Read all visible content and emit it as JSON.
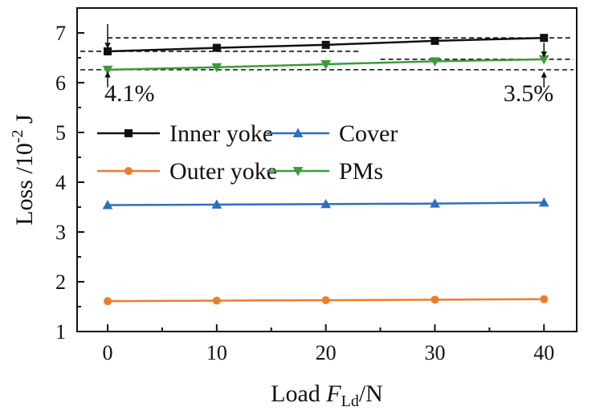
{
  "chart_data": {
    "type": "line",
    "xlabel": "Load",
    "xlabel_var": "F",
    "xlabel_sub": "Ld",
    "xlabel_unit": "/N",
    "ylabel": "Loss /10",
    "ylabel_exp": "-2",
    "ylabel_unit": " J",
    "x": [
      0,
      10,
      20,
      30,
      40
    ],
    "xticks": [
      "0",
      "10",
      "20",
      "30",
      "40"
    ],
    "yticks": [
      "1",
      "2",
      "3",
      "4",
      "5",
      "6",
      "7"
    ],
    "xlim": [
      -2.8,
      43
    ],
    "ylim": [
      1,
      7.5
    ],
    "series": [
      {
        "name": "Inner yoke",
        "color": "#111111",
        "marker": "square",
        "values": [
          6.63,
          6.7,
          6.76,
          6.84,
          6.9
        ]
      },
      {
        "name": "Cover",
        "color": "#2e6fbd",
        "marker": "triangle-up",
        "values": [
          3.54,
          3.55,
          3.56,
          3.57,
          3.59
        ]
      },
      {
        "name": "Outer yoke",
        "color": "#f07c2a",
        "marker": "circle",
        "values": [
          1.61,
          1.62,
          1.63,
          1.64,
          1.65
        ]
      },
      {
        "name": "PMs",
        "color": "#3b9b3b",
        "marker": "triangle-down",
        "values": [
          6.26,
          6.31,
          6.37,
          6.43,
          6.47
        ]
      }
    ],
    "annotations": [
      {
        "text": "4.1%",
        "x": 0
      },
      {
        "text": "3.5%",
        "x": 40
      }
    ],
    "legend_position": "middle-left"
  }
}
